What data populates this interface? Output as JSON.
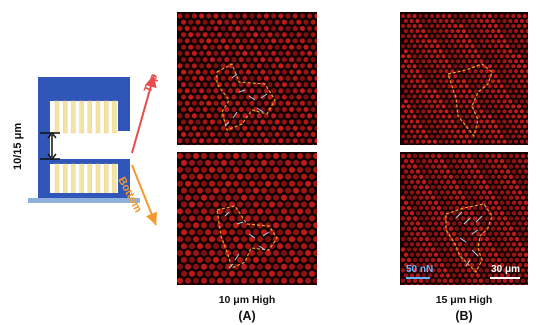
{
  "schematic": {
    "height_label": "10/15 μm",
    "top_label": "Top",
    "bottom_label": "Bottom",
    "colors": {
      "substrate": "#2f56b8",
      "pillar": "#f3e4a6",
      "top_arrow": "#e84b4b",
      "bottom_arrow": "#f39a2d",
      "base": "#8db1dc"
    }
  },
  "panels": {
    "a_top": {
      "name": "10-um-top-image"
    },
    "a_bottom": {
      "name": "10-um-bottom-image"
    },
    "b_top": {
      "name": "15-um-top-image"
    },
    "b_bottom": {
      "name": "15-um-bottom-image"
    }
  },
  "scale": {
    "force_label": "50 nN",
    "length_label": "30 μm"
  },
  "captions": {
    "a_title": "10 μm High",
    "a_letter": "(A)",
    "b_title": "15 μm High",
    "b_letter": "(B)"
  },
  "colors": {
    "dot": "#d11b1b",
    "outline": "#f0a12a",
    "vector": "#9fd6ef",
    "force_text": "#64b5ff"
  }
}
